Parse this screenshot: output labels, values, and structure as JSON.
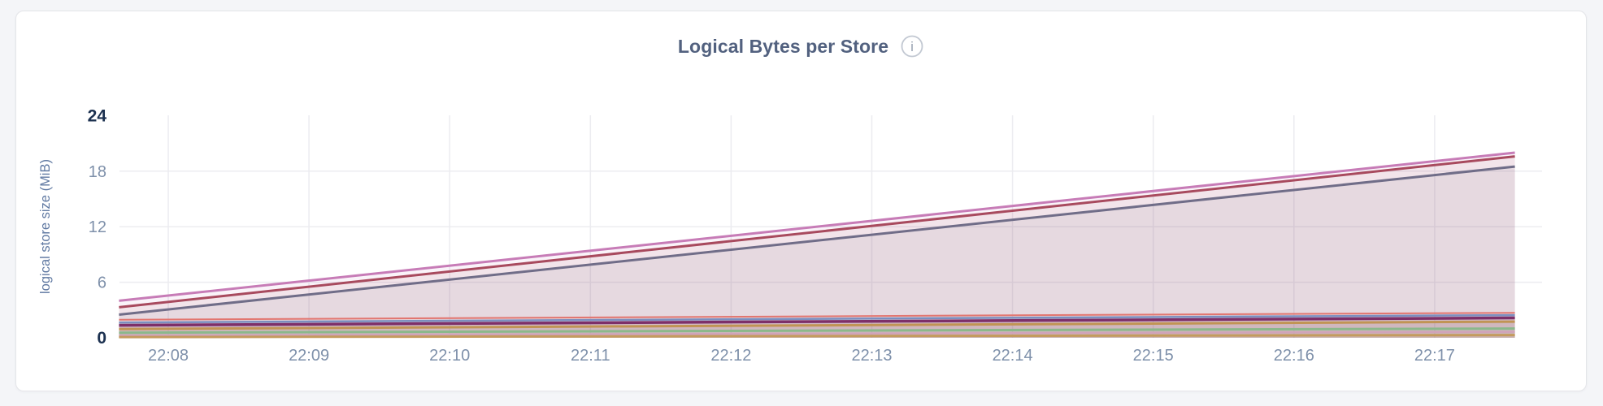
{
  "card": {
    "title": "Logical Bytes per Store",
    "info_icon_glyph": "i"
  },
  "colors": {
    "page_bg": "#f4f5f8",
    "card_bg": "#ffffff",
    "card_border": "#e4e5e9",
    "title": "#52617f",
    "tick": "#7e90aa",
    "tick_bold": "#1c3150",
    "axis_label": "#6079a2",
    "gridline": "#ececf0",
    "info_icon_ring": "#c2c8d2",
    "info_icon_glyph_color": "#97a1b0"
  },
  "chart_data": {
    "type": "area",
    "title": "Logical Bytes per Store",
    "xlabel": "",
    "ylabel": "logical store size (MiB)",
    "legend": "none",
    "grid": true,
    "y_axis": {
      "min": 0,
      "max": 24,
      "unit": "MiB",
      "ticks": [
        {
          "label": "24",
          "value": 24,
          "bold": true
        },
        {
          "label": "18",
          "value": 18,
          "bold": false
        },
        {
          "label": "12",
          "value": 12,
          "bold": false
        },
        {
          "label": "6",
          "value": 6,
          "bold": false
        },
        {
          "label": "0",
          "value": 0,
          "bold": true
        }
      ],
      "grid_values": [
        18,
        12,
        6
      ]
    },
    "x_axis": {
      "tick_labels": [
        "22:08",
        "22:09",
        "22:10",
        "22:11",
        "22:12",
        "22:13",
        "22:14",
        "22:15",
        "22:16",
        "22:17"
      ],
      "minutes_per_tick": 1,
      "domain_minutes": [
        -0.35,
        9.57
      ]
    },
    "series": [
      {
        "color": "#c77cb7",
        "stroke_width": 3,
        "points": [
          [
            -0.35,
            4.0
          ],
          [
            9.57,
            20.0
          ]
        ]
      },
      {
        "color": "#a84a5e",
        "stroke_width": 3,
        "points": [
          [
            -0.35,
            3.3
          ],
          [
            9.57,
            19.6
          ]
        ]
      },
      {
        "color": "#706d88",
        "stroke_width": 3,
        "points": [
          [
            -0.35,
            2.5
          ],
          [
            9.57,
            18.5
          ]
        ]
      },
      {
        "color": "#e27670",
        "stroke_width": 2,
        "points": [
          [
            -0.35,
            1.95
          ],
          [
            9.57,
            2.7
          ]
        ]
      },
      {
        "color": "#7b8fc0",
        "stroke_width": 2.5,
        "points": [
          [
            -0.35,
            1.65
          ],
          [
            9.57,
            2.45
          ]
        ]
      },
      {
        "color": "#7d2f69",
        "stroke_width": 3.5,
        "points": [
          [
            -0.35,
            1.35
          ],
          [
            9.57,
            2.15
          ]
        ]
      },
      {
        "color": "#c19454",
        "stroke_width": 3,
        "points": [
          [
            -0.35,
            0.95
          ],
          [
            9.57,
            1.75
          ]
        ]
      },
      {
        "color": "#8bb88b",
        "stroke_width": 3,
        "points": [
          [
            -0.35,
            0.55
          ],
          [
            9.57,
            1.0
          ]
        ]
      },
      {
        "color": "#d0a3b9",
        "stroke_width": 2.5,
        "points": [
          [
            -0.35,
            0.25
          ],
          [
            9.57,
            0.65
          ]
        ]
      },
      {
        "color": "#c49b5e",
        "stroke_width": 3,
        "points": [
          [
            -0.35,
            0.08
          ],
          [
            9.57,
            0.3
          ]
        ]
      }
    ],
    "fill_opacity": 0.09
  }
}
